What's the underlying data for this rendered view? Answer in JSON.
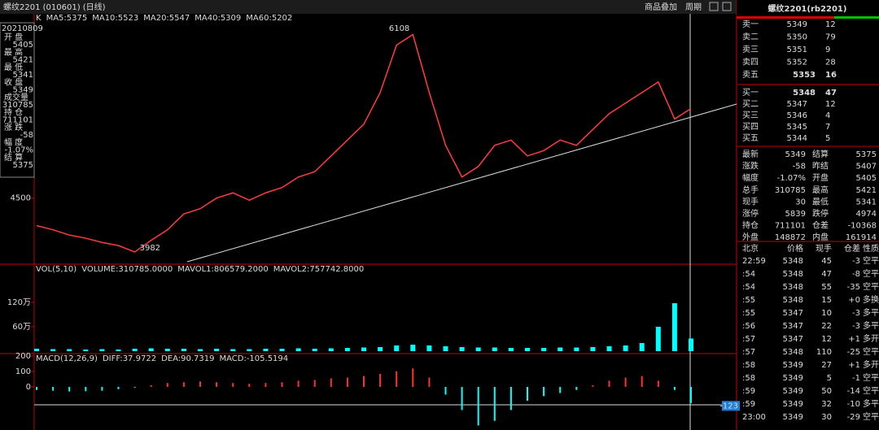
{
  "header": {
    "title": "螺纹2201 (010601) (日线)",
    "buttons": [
      "商品叠加",
      "周期"
    ]
  },
  "info_box": {
    "date": "20210809",
    "items": [
      {
        "label": "开 盘",
        "value": 5405
      },
      {
        "label": "最 高",
        "value": 5421
      },
      {
        "label": "最 低",
        "value": 5341
      },
      {
        "label": "收 盘",
        "value": 5349
      },
      {
        "label": "成交量",
        "value": 310785
      },
      {
        "label": "持 仓",
        "value": 711101
      },
      {
        "label": "涨 跌",
        "value": -58
      },
      {
        "label": "幅 度",
        "value": "-1.07%"
      },
      {
        "label": "结 算",
        "value": 5375
      }
    ]
  },
  "chart_data": [
    {
      "type": "line",
      "indicators": [
        {
          "text": "K",
          "color": "#ffffff"
        },
        {
          "text": "MA5:5375",
          "color": "#ffffff"
        },
        {
          "text": "MA10:5523",
          "color": "#ffd700"
        },
        {
          "text": "MA20:5547",
          "color": "#ff40ff"
        },
        {
          "text": "MA40:5309",
          "color": "#00e000"
        },
        {
          "text": "MA60:5202",
          "color": "#8080ff"
        }
      ],
      "values": [
        4240,
        4200,
        4150,
        4120,
        4080,
        4050,
        3990,
        4100,
        4200,
        4350,
        4400,
        4500,
        4550,
        4480,
        4550,
        4600,
        4700,
        4750,
        4900,
        5050,
        5200,
        5500,
        5950,
        6050,
        5500,
        5000,
        4700,
        4800,
        5000,
        5050,
        4900,
        4950,
        5050,
        5000,
        5150,
        5300,
        5400,
        5500,
        5600,
        5250,
        5349
      ],
      "color": "#ff3c3c",
      "ylim": [
        3874,
        6146
      ],
      "yticks": [
        4500
      ],
      "high_label": 6108,
      "low_label": 3982
    },
    {
      "type": "bar",
      "indicators": [
        {
          "text": "VOL(5,10)",
          "color": "#ffffff"
        },
        {
          "text": "VOLUME:310785.0000",
          "color": "#ffffff"
        },
        {
          "text": "MAVOL1:806579.2000",
          "color": "#ffd700"
        },
        {
          "text": "MAVOL2:757742.8000",
          "color": "#ff40ff"
        }
      ],
      "values": [
        6,
        5,
        5,
        4,
        5,
        4,
        6,
        7,
        6,
        6,
        5,
        6,
        5,
        5,
        6,
        6,
        7,
        6,
        7,
        8,
        9,
        10,
        14,
        16,
        14,
        12,
        10,
        9,
        9,
        8,
        8,
        8,
        9,
        9,
        10,
        12,
        14,
        20,
        60,
        118,
        31
      ],
      "color": "#00ffff",
      "ylim": [
        0,
        208
      ],
      "yticks": [
        {
          "value": 60,
          "label": "60万"
        },
        {
          "value": 120,
          "label": "120万"
        }
      ]
    },
    {
      "type": "bar",
      "indicators": [
        {
          "text": "MACD(12,26,9)",
          "color": "#ffffff"
        },
        {
          "text": "DIFF:37.9722",
          "color": "#ffffff"
        },
        {
          "text": "DEA:90.7319",
          "color": "#ffd700"
        },
        {
          "text": "MACD:-105.5194",
          "color": "#ff40ff"
        }
      ],
      "values": [
        -20,
        -25,
        -30,
        -28,
        -25,
        -15,
        -5,
        10,
        25,
        30,
        35,
        30,
        25,
        20,
        25,
        30,
        40,
        45,
        55,
        60,
        70,
        85,
        100,
        120,
        60,
        -50,
        -150,
        -250,
        -220,
        -150,
        -90,
        -60,
        -40,
        -20,
        10,
        40,
        60,
        70,
        40,
        -20,
        -105
      ],
      "up_color": "#ff3232",
      "down_color": "#00ffff",
      "ylim": [
        -274,
        205
      ],
      "yticks": [
        0,
        100,
        200
      ],
      "cursor_value": -123
    }
  ],
  "quote": {
    "title": "螺纹2201(rb2201)",
    "asks": [
      {
        "label": "卖五",
        "price": 5353,
        "volume": 16
      },
      {
        "label": "卖四",
        "price": 5352,
        "volume": 28
      },
      {
        "label": "卖三",
        "price": 5351,
        "volume": 9
      },
      {
        "label": "卖二",
        "price": 5350,
        "volume": 79
      },
      {
        "label": "卖一",
        "price": 5349,
        "volume": 12
      }
    ],
    "bids": [
      {
        "label": "买一",
        "price": 5348,
        "volume": 47
      },
      {
        "label": "买二",
        "price": 5347,
        "volume": 12
      },
      {
        "label": "买三",
        "price": 5346,
        "volume": 4
      },
      {
        "label": "买四",
        "price": 5345,
        "volume": 7
      },
      {
        "label": "买五",
        "price": 5344,
        "volume": 5
      }
    ],
    "stats": [
      [
        "最新",
        5349,
        "结算",
        5375
      ],
      [
        "涨跌",
        -58,
        "昨结",
        5407
      ],
      [
        "幅度",
        "-1.07%",
        "开盘",
        5405
      ],
      [
        "总手",
        310785,
        "最高",
        5421
      ],
      [
        "现手",
        30,
        "最低",
        5341
      ],
      [
        "涨停",
        5839,
        "跌停",
        4974
      ],
      [
        "持仓",
        711101,
        "仓差",
        -10368
      ],
      [
        "外盘",
        148872,
        "内盘",
        161914
      ]
    ],
    "trades_header": [
      "北京",
      "价格",
      "现手",
      "仓差",
      "性质"
    ],
    "trades": [
      [
        "22:59",
        5348,
        45,
        -3,
        "空平"
      ],
      [
        ":54",
        5348,
        47,
        -8,
        "空平"
      ],
      [
        ":54",
        5348,
        55,
        -35,
        "空平"
      ],
      [
        ":55",
        5348,
        15,
        "+0",
        "多换"
      ],
      [
        ":55",
        5347,
        10,
        -3,
        "多平"
      ],
      [
        ":56",
        5347,
        22,
        -3,
        "多平"
      ],
      [
        ":57",
        5347,
        12,
        "+1",
        "多开"
      ],
      [
        ":57",
        5348,
        110,
        -25,
        "空平"
      ],
      [
        ":58",
        5349,
        27,
        "+1",
        "多开"
      ],
      [
        ":58",
        5349,
        5,
        -1,
        "空平"
      ],
      [
        ":59",
        5349,
        50,
        -14,
        "空平"
      ],
      [
        ":59",
        5349,
        32,
        -10,
        "多平"
      ],
      [
        "23:00",
        5349,
        30,
        -29,
        "空平"
      ]
    ]
  }
}
